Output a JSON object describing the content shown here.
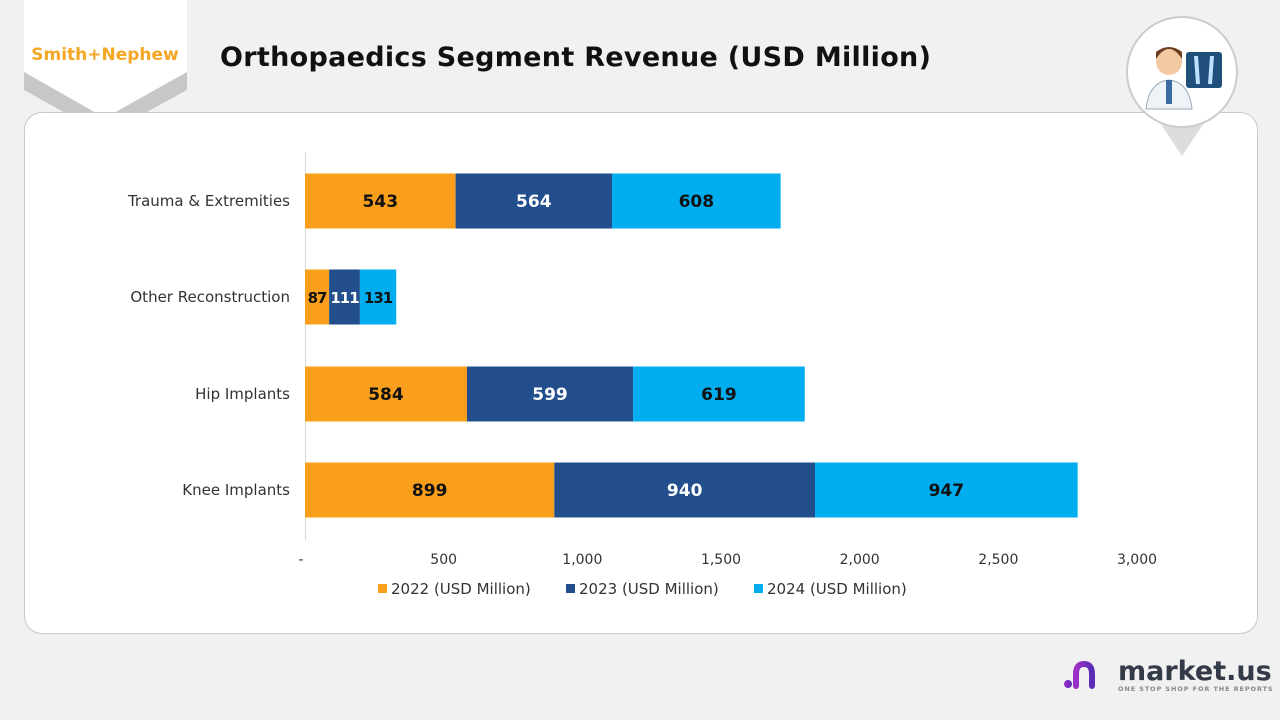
{
  "brand": {
    "logo_text": "Smith+Nephew",
    "logo_color": "#f5a623"
  },
  "title": "Orthopaedics Segment Revenue (USD Million)",
  "footer": {
    "name": "market.us",
    "tagline": "ONE STOP SHOP FOR THE REPORTS"
  },
  "chart_data": {
    "type": "bar",
    "orientation": "horizontal",
    "stacked": true,
    "categories": [
      "Trauma & Extremities",
      "Other Reconstruction",
      "Hip Implants",
      "Knee Implants"
    ],
    "series": [
      {
        "name": "2022 (USD Million)",
        "color": "#fa9f1b",
        "values": [
          543,
          87,
          584,
          899
        ]
      },
      {
        "name": "2023 (USD Million)",
        "color": "#234e8c",
        "values": [
          564,
          111,
          599,
          940
        ]
      },
      {
        "name": "2024 (USD Million)",
        "color": "#00adef",
        "values": [
          608,
          131,
          619,
          947
        ]
      }
    ],
    "xlim": [
      0,
      3000
    ],
    "x_ticks": [
      "-",
      "500",
      "1,000",
      "1,500",
      "2,000",
      "2,500",
      "3,000"
    ],
    "grid": false,
    "legend_position": "bottom"
  }
}
